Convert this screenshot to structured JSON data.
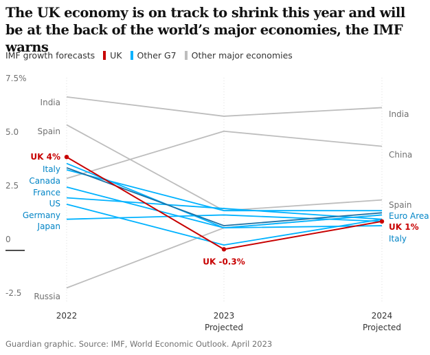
{
  "title": "The UK economy is on track to shrink this year and will be at the back of the world’s major economies, the IMF warns",
  "legend": {
    "heading": "IMF growth forecasts",
    "items": [
      {
        "label": "UK",
        "color": "#c70000"
      },
      {
        "label": "Other G7",
        "color": "#00b2ff"
      },
      {
        "label": "Other major economies",
        "color": "#bdbdbd"
      }
    ]
  },
  "footer": "Guardian graphic. Source: IMF, World Economic Outlook. April 2023",
  "chart_data": {
    "type": "line",
    "x": [
      "2022",
      "2023",
      "2024"
    ],
    "x_sublabels": [
      "",
      "Projected",
      "Projected"
    ],
    "yticks": [
      {
        "value": 7.5,
        "label": "7.5%"
      },
      {
        "value": 5.0,
        "label": "5.0"
      },
      {
        "value": 2.5,
        "label": "2.5"
      },
      {
        "value": 0,
        "label": "0"
      },
      {
        "value": -2.5,
        "label": "-2.5"
      }
    ],
    "ylim": [
      -2.5,
      7.5
    ],
    "colors": {
      "UK": "#c70000",
      "Other G7": "#00b2ff",
      "Other major economies": "#bdbdbd",
      "Euro Area": "#1a6fa3"
    },
    "series": [
      {
        "name": "India",
        "group": "Other major economies",
        "values": [
          6.8,
          5.9,
          6.3
        ],
        "label_2022": "India",
        "label_2024": "India"
      },
      {
        "name": "China",
        "group": "Other major economies",
        "values": [
          3.0,
          5.2,
          4.5
        ],
        "label_2022": "",
        "label_2024": "China"
      },
      {
        "name": "Spain",
        "group": "Other major economies",
        "values": [
          5.5,
          1.5,
          2.0
        ],
        "label_2022": "Spain",
        "label_2024": "Spain"
      },
      {
        "name": "Russia",
        "group": "Other major economies",
        "values": [
          -2.1,
          0.7,
          1.3
        ],
        "label_2022": "Russia",
        "label_2024": ""
      },
      {
        "name": "Italy",
        "group": "Other G7",
        "values": [
          3.7,
          0.7,
          0.8
        ],
        "label_2022": "Italy",
        "label_2024": "Italy"
      },
      {
        "name": "Canada",
        "group": "Other G7",
        "values": [
          3.4,
          1.5,
          1.5
        ],
        "label_2022": "Canada",
        "label_2024": ""
      },
      {
        "name": "France",
        "group": "Other G7",
        "values": [
          2.6,
          0.7,
          1.3
        ],
        "label_2022": "France",
        "label_2024": ""
      },
      {
        "name": "US",
        "group": "Other G7",
        "values": [
          2.1,
          1.6,
          1.1
        ],
        "label_2022": "US",
        "label_2024": ""
      },
      {
        "name": "Germany",
        "group": "Other G7",
        "values": [
          1.8,
          -0.1,
          1.1
        ],
        "label_2022": "Germany",
        "label_2024": ""
      },
      {
        "name": "Japan",
        "group": "Other G7",
        "values": [
          1.1,
          1.3,
          1.0
        ],
        "label_2022": "Japan",
        "label_2024": ""
      },
      {
        "name": "Euro Area",
        "group": "Euro Area",
        "values": [
          3.5,
          0.8,
          1.4
        ],
        "label_2022": "",
        "label_2024": "Euro Area"
      },
      {
        "name": "UK",
        "group": "UK",
        "values": [
          4.0,
          -0.3,
          1.0
        ],
        "label_2022": "UK 4%",
        "label_2023": "UK -0.3%",
        "label_2024": "UK 1%"
      }
    ]
  }
}
